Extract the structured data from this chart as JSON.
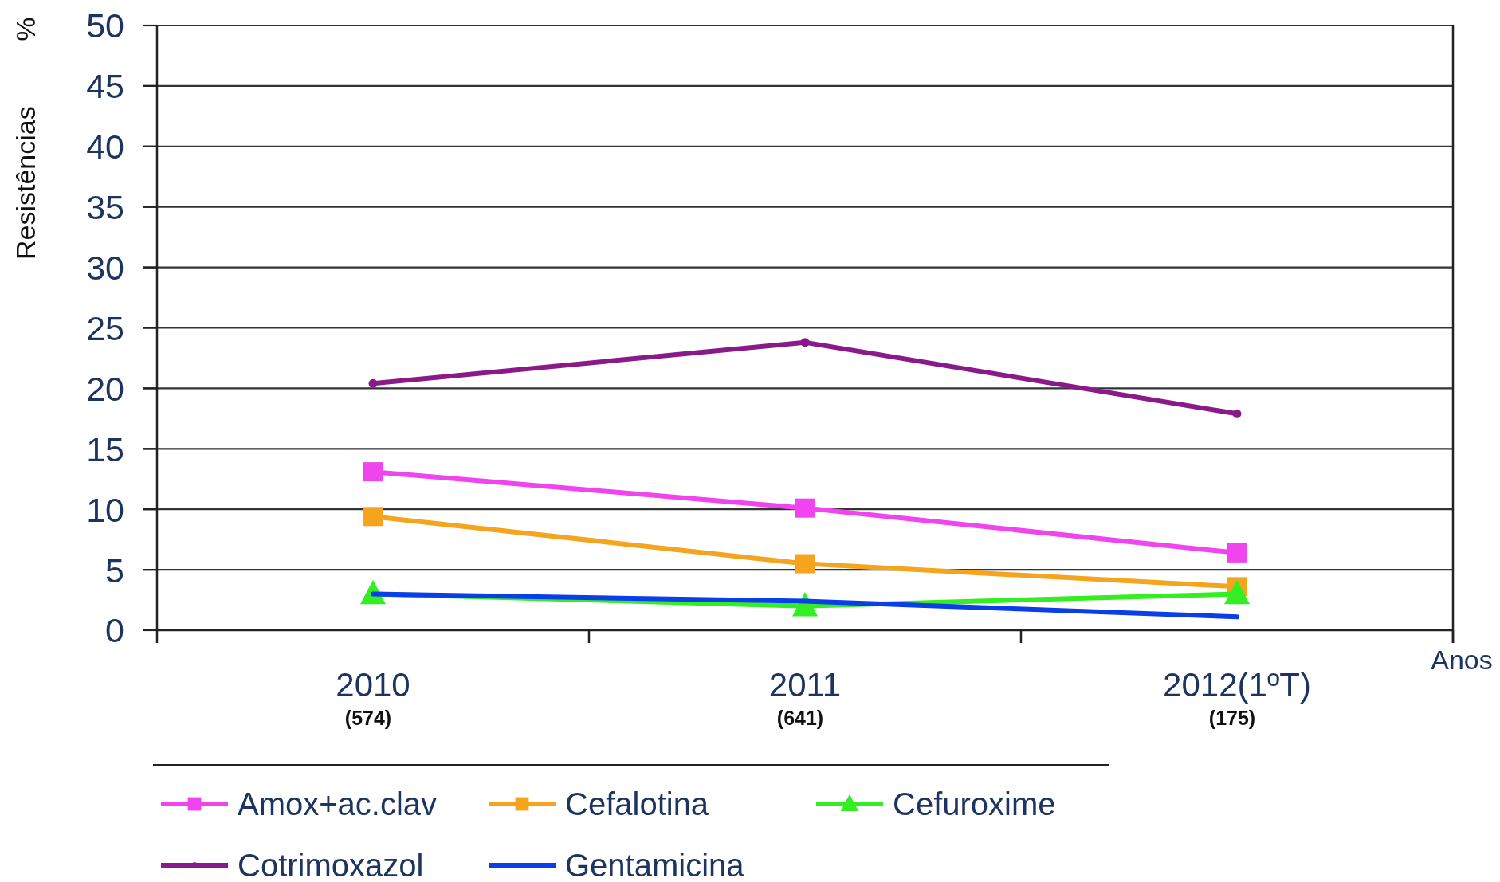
{
  "chart_data": {
    "type": "line",
    "xlabel": "Anos",
    "ylabel": "Resistências %",
    "categories": [
      "2010\n(574)",
      "2011\n(641)",
      "2012(1ºT)\n(175)"
    ],
    "ylim": [
      0,
      50
    ],
    "yticks": [
      0,
      5,
      10,
      15,
      20,
      25,
      30,
      35,
      40,
      45,
      50
    ],
    "grid": "y",
    "legend": "bottom",
    "line_style": "solid",
    "series": [
      {
        "name": "Amox+ac.clav",
        "color": "#f044ee",
        "marker": "square",
        "values": [
          13.1,
          10.1,
          6.4
        ]
      },
      {
        "name": "Cefalotina",
        "color": "#f5a41d",
        "marker": "square",
        "values": [
          9.4,
          5.5,
          3.6
        ]
      },
      {
        "name": "Cefuroxime",
        "color": "#33ee22",
        "marker": "triangle",
        "values": [
          3.0,
          2.0,
          3.0
        ]
      },
      {
        "name": "Cotrimoxazol",
        "color": "#8a1a8a",
        "marker": "circle",
        "values": [
          20.4,
          23.8,
          17.9
        ]
      },
      {
        "name": "Gentamicina",
        "color": "#0a3ee8",
        "marker": "none",
        "values": [
          3.0,
          2.4,
          1.1
        ]
      }
    ]
  }
}
